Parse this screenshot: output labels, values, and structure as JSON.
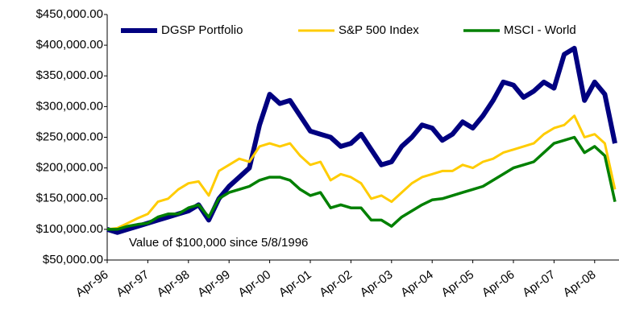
{
  "chart_data": {
    "type": "line",
    "annotation": "Value of $100,000 since 5/8/1996",
    "categories": [
      "Apr-96",
      null,
      null,
      null,
      "Apr-97",
      null,
      null,
      null,
      "Apr-98",
      null,
      null,
      null,
      "Apr-99",
      null,
      null,
      null,
      "Apr-00",
      null,
      null,
      null,
      "Apr-01",
      null,
      null,
      null,
      "Apr-02",
      null,
      null,
      null,
      "Apr-03",
      null,
      null,
      null,
      "Apr-04",
      null,
      null,
      null,
      "Apr-05",
      null,
      null,
      null,
      "Apr-06",
      null,
      null,
      null,
      "Apr-07",
      null,
      null,
      null,
      "Apr-08",
      null,
      null
    ],
    "series": [
      {
        "name": "DGSP Portfolio",
        "color": "#000080",
        "values": [
          100000,
          95000,
          100000,
          105000,
          110000,
          115000,
          120000,
          125000,
          130000,
          140000,
          115000,
          150000,
          170000,
          185000,
          200000,
          270000,
          320000,
          305000,
          310000,
          285000,
          260000,
          255000,
          250000,
          235000,
          240000,
          255000,
          230000,
          205000,
          210000,
          235000,
          250000,
          270000,
          265000,
          245000,
          255000,
          275000,
          265000,
          285000,
          310000,
          340000,
          335000,
          315000,
          325000,
          340000,
          330000,
          385000,
          395000,
          310000,
          340000,
          320000,
          240000
        ]
      },
      {
        "name": "S&P 500 Index",
        "color": "#ffcc00",
        "values": [
          100000,
          102000,
          110000,
          118000,
          125000,
          145000,
          150000,
          165000,
          175000,
          178000,
          155000,
          195000,
          205000,
          215000,
          210000,
          235000,
          240000,
          235000,
          240000,
          220000,
          205000,
          210000,
          180000,
          190000,
          185000,
          175000,
          150000,
          155000,
          145000,
          160000,
          175000,
          185000,
          190000,
          195000,
          195000,
          205000,
          200000,
          210000,
          215000,
          225000,
          230000,
          235000,
          240000,
          255000,
          265000,
          270000,
          285000,
          250000,
          255000,
          240000,
          165000
        ]
      },
      {
        "name": "MSCI -  World",
        "color": "#008000",
        "values": [
          100000,
          100000,
          105000,
          108000,
          110000,
          120000,
          125000,
          125000,
          135000,
          140000,
          120000,
          150000,
          160000,
          165000,
          170000,
          180000,
          185000,
          185000,
          180000,
          165000,
          155000,
          160000,
          135000,
          140000,
          135000,
          135000,
          115000,
          115000,
          105000,
          120000,
          130000,
          140000,
          148000,
          150000,
          155000,
          160000,
          165000,
          170000,
          180000,
          190000,
          200000,
          205000,
          210000,
          225000,
          240000,
          245000,
          250000,
          225000,
          235000,
          220000,
          145000
        ]
      }
    ],
    "ylim": [
      50000,
      450000
    ],
    "yticks": [
      {
        "value": 50000,
        "label": "$50,000.00"
      },
      {
        "value": 100000,
        "label": "$100,000.00"
      },
      {
        "value": 150000,
        "label": "$150,000.00"
      },
      {
        "value": 200000,
        "label": "$200,000.00"
      },
      {
        "value": 250000,
        "label": "$250,000.00"
      },
      {
        "value": 300000,
        "label": "$300,000.00"
      },
      {
        "value": 350000,
        "label": "$350,000.00"
      },
      {
        "value": 400000,
        "label": "$400,000.00"
      },
      {
        "value": 450000,
        "label": "$450,000.00"
      }
    ],
    "legend": "top"
  }
}
